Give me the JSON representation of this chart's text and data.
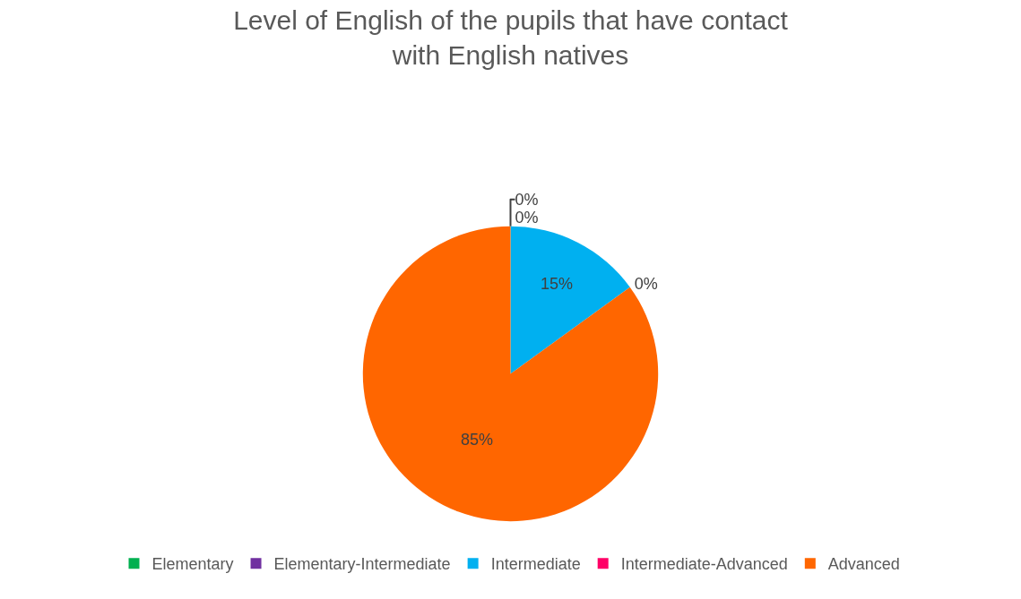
{
  "chart_data": {
    "type": "pie",
    "title": "Level of English of the pupils that have contact with English natives",
    "categories": [
      "Elementary",
      "Elementary-Intermediate",
      "Intermediate",
      "Intermediate-Advanced",
      "Advanced"
    ],
    "values": [
      0,
      0,
      15,
      0,
      85
    ],
    "value_labels": [
      "0%",
      "0%",
      "15%",
      "0%",
      "85%"
    ],
    "colors": [
      "#00b050",
      "#7030a0",
      "#00b0f0",
      "#ff0066",
      "#ff6600"
    ],
    "legend": "bottom"
  }
}
